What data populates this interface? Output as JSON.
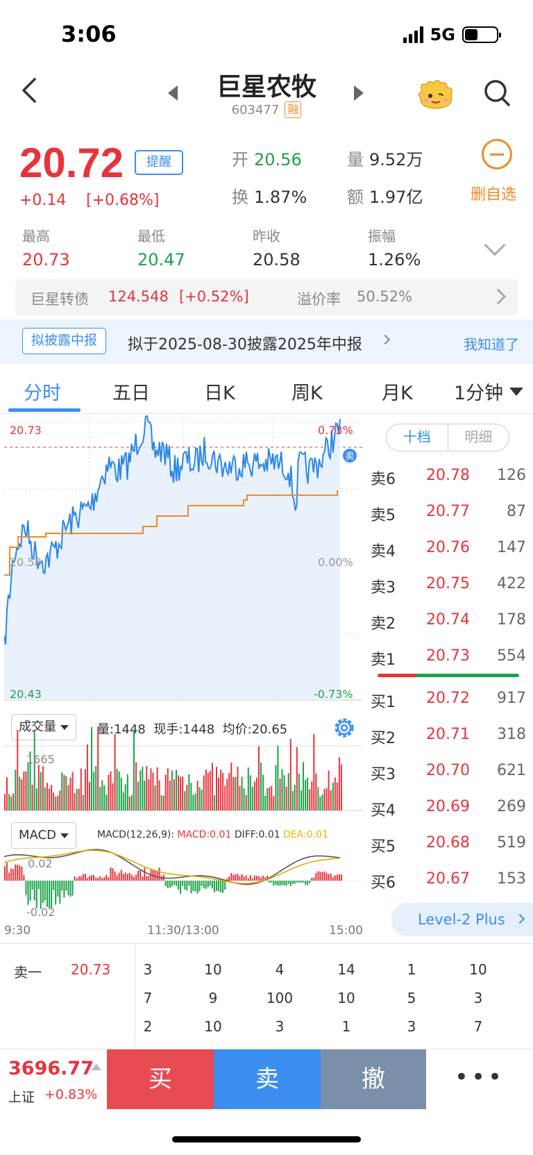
{
  "status": {
    "time": "3:06",
    "network": "5G"
  },
  "header": {
    "name": "巨星农牧",
    "code": "603477",
    "margin_tag": "融"
  },
  "quote": {
    "price": "20.72",
    "change": "+0.14",
    "change_pct": "[+0.68%]",
    "remind_label": "提醒",
    "open_k": "开",
    "open_v": "20.56",
    "volume_k": "量",
    "volume_v": "9.52万",
    "turnover_k": "换",
    "turnover_v": "1.87%",
    "amount_k": "额",
    "amount_v": "1.97亿",
    "remove_label": "删自选",
    "high_k": "最高",
    "high_v": "20.73",
    "low_k": "最低",
    "low_v": "20.47",
    "prev_k": "昨收",
    "prev_v": "20.58",
    "amp_k": "振幅",
    "amp_v": "1.26%"
  },
  "bond": {
    "name": "巨星转债",
    "price": "124.548",
    "change": "[+0.52%]",
    "premium_k": "溢价率",
    "premium_v": "50.52%"
  },
  "notice": {
    "tag": "拟披露中报",
    "text": "拟于2025-08-30披露2025年中报",
    "dismiss": "我知道了"
  },
  "tabs": [
    "分时",
    "五日",
    "日K",
    "周K",
    "月K",
    "1分钟"
  ],
  "chart_labels": {
    "high_price": "20.73",
    "high_pct": "0.73%",
    "mid_price": "20.58",
    "mid_pct": "0.00%",
    "low_price": "20.43",
    "low_pct": "-0.73%",
    "sell_marker": "卖"
  },
  "volume_panel": {
    "selector": "成交量",
    "info": "量:1448  现手:1448  均价:20.65",
    "max_label": "1665"
  },
  "macd_panel": {
    "selector": "MACD",
    "params": "MACD(12,26,9):",
    "macd": "MACD:0.01",
    "diff": "DIFF:0.01",
    "dea": "DEA:0.01",
    "top_label": "0.02",
    "bottom_label": "-0.02"
  },
  "time_axis": [
    "9:30",
    "11:30/13:00",
    "15:00"
  ],
  "order_book": {
    "tab_active": "十档",
    "tab_other": "明细",
    "asks": [
      {
        "label": "卖6",
        "price": "20.78",
        "vol": "126"
      },
      {
        "label": "卖5",
        "price": "20.77",
        "vol": "87"
      },
      {
        "label": "卖4",
        "price": "20.76",
        "vol": "147"
      },
      {
        "label": "卖3",
        "price": "20.75",
        "vol": "422"
      },
      {
        "label": "卖2",
        "price": "20.74",
        "vol": "178"
      },
      {
        "label": "卖1",
        "price": "20.73",
        "vol": "554"
      }
    ],
    "bids": [
      {
        "label": "买1",
        "price": "20.72",
        "vol": "917"
      },
      {
        "label": "买2",
        "price": "20.71",
        "vol": "318"
      },
      {
        "label": "买3",
        "price": "20.70",
        "vol": "621"
      },
      {
        "label": "买4",
        "price": "20.69",
        "vol": "269"
      },
      {
        "label": "买5",
        "price": "20.68",
        "vol": "519"
      },
      {
        "label": "买6",
        "price": "20.67",
        "vol": "153"
      }
    ],
    "level2": "Level-2 Plus"
  },
  "detail": {
    "sell1_k": "卖一",
    "sell1_v": "20.73",
    "rows": [
      [
        "3",
        "10",
        "4",
        "14",
        "1",
        "10"
      ],
      [
        "7",
        "9",
        "100",
        "10",
        "5",
        "3"
      ],
      [
        "2",
        "10",
        "3",
        "1",
        "3",
        "7"
      ]
    ]
  },
  "bottom": {
    "index_value": "3696.77",
    "index_name": "上证",
    "index_change": "+0.83%",
    "buy": "买",
    "sell": "卖",
    "cancel": "撤",
    "more": "•••"
  },
  "colors": {
    "up": "#e8333c",
    "down": "#1aa34a",
    "accent": "#3b8ef0",
    "avg_line": "#f08a24"
  }
}
